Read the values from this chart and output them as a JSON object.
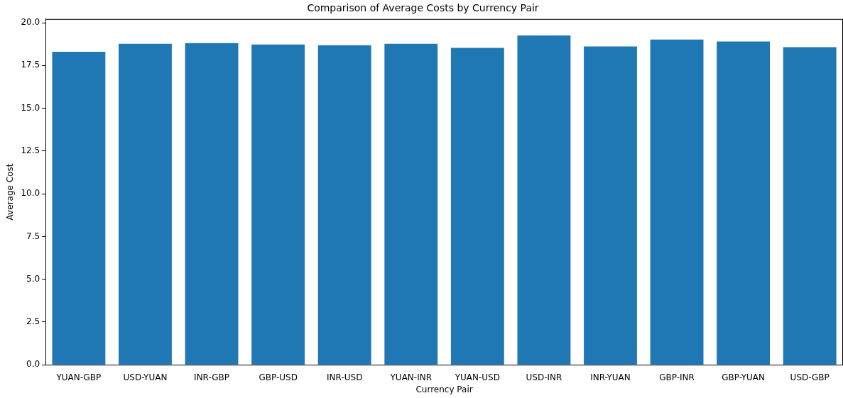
{
  "chart_data": {
    "type": "bar",
    "title": "Comparison of Average Costs by Currency Pair",
    "xlabel": "Currency Pair",
    "ylabel": "Average Cost",
    "categories": [
      "YUAN-GBP",
      "USD-YUAN",
      "INR-GBP",
      "GBP-USD",
      "INR-USD",
      "YUAN-INR",
      "YUAN-USD",
      "USD-INR",
      "INR-YUAN",
      "GBP-INR",
      "GBP-YUAN",
      "USD-GBP"
    ],
    "values": [
      18.3,
      18.77,
      18.81,
      18.73,
      18.69,
      18.77,
      18.53,
      19.26,
      18.61,
      19.02,
      18.9,
      18.57
    ],
    "color": "#1f77b4",
    "ylim": [
      0,
      20.22
    ],
    "yticks": [
      {
        "value": 0,
        "label": "0.0"
      },
      {
        "value": 2.5,
        "label": "2.5"
      },
      {
        "value": 5,
        "label": "5.0"
      },
      {
        "value": 7.5,
        "label": "7.5"
      },
      {
        "value": 10,
        "label": "10.0"
      },
      {
        "value": 12.5,
        "label": "12.5"
      },
      {
        "value": 15,
        "label": "15.0"
      },
      {
        "value": 17.5,
        "label": "17.5"
      },
      {
        "value": 20,
        "label": "20.0"
      }
    ],
    "grid": false,
    "legend": false
  }
}
